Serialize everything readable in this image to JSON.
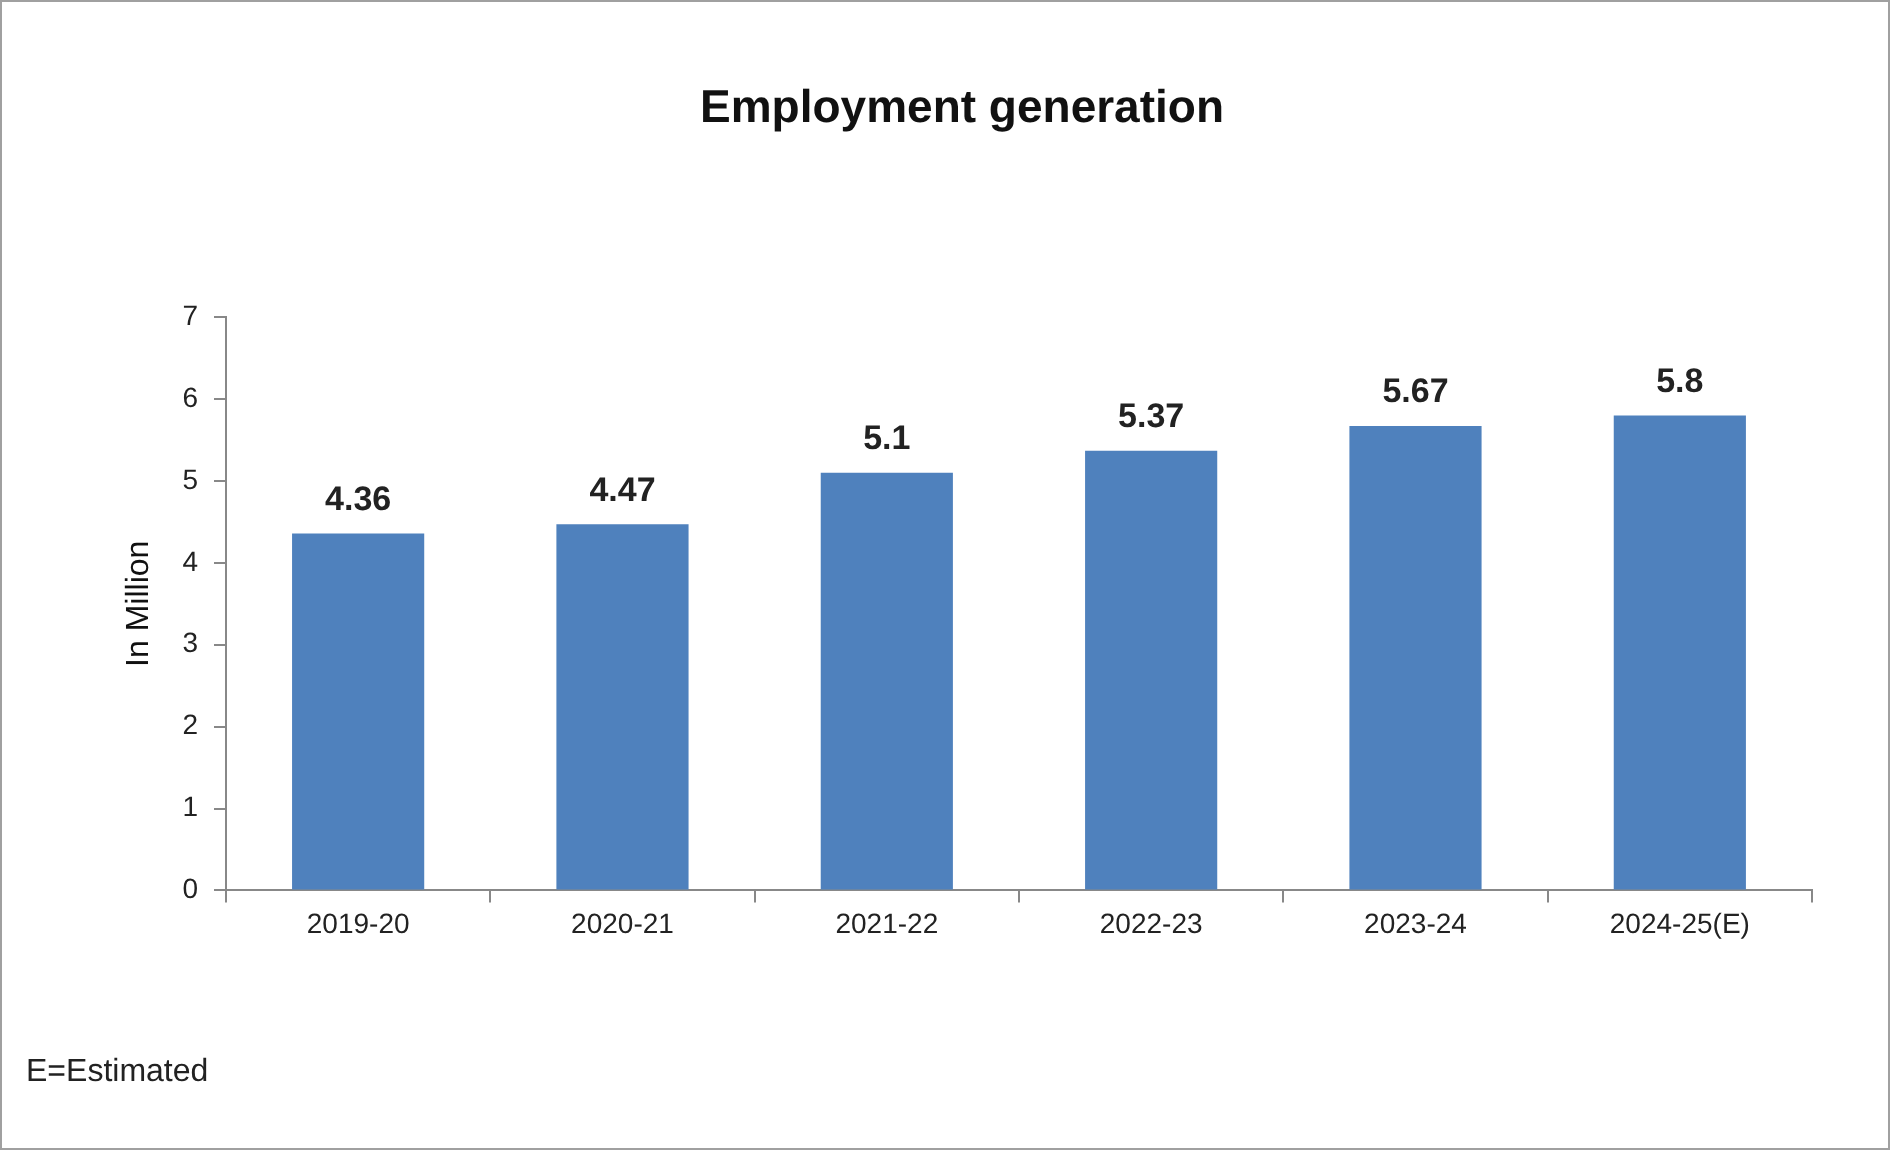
{
  "chart_data": {
    "type": "bar",
    "title": "Employment generation",
    "ylabel": "In Million",
    "categories": [
      "2019-20",
      "2020-21",
      "2021-22",
      "2022-23",
      "2023-24",
      "2024-25(E)"
    ],
    "values": [
      4.36,
      4.47,
      5.1,
      5.37,
      5.67,
      5.8
    ],
    "color": "#4f81bd",
    "ylim": [
      0,
      7
    ],
    "yticks": [
      0,
      1,
      2,
      3,
      4,
      5,
      6,
      7
    ],
    "grid": false,
    "legend": false,
    "data_labels": true,
    "annotations": [
      "E=Estimated"
    ]
  }
}
